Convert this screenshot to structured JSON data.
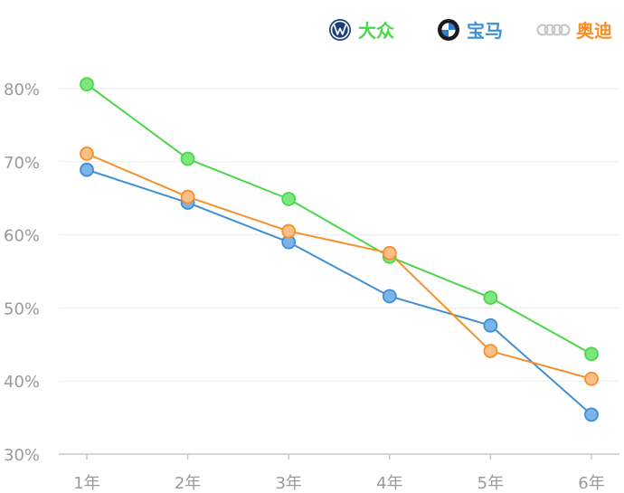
{
  "chart_data": {
    "type": "line",
    "categories": [
      "1年",
      "2年",
      "3年",
      "4年",
      "5年",
      "6年"
    ],
    "y_ticks": [
      "30%",
      "40%",
      "50%",
      "60%",
      "70%",
      "80%"
    ],
    "ylim": [
      30,
      80
    ],
    "grid": true,
    "legend_position": "top-right",
    "series": [
      {
        "name": "大众",
        "color": "#4cd64c",
        "marker_fill": "#7ee67e",
        "icon": "volkswagen-logo-icon",
        "values": [
          80.6,
          70.4,
          64.9,
          57.0,
          51.4,
          43.7
        ]
      },
      {
        "name": "宝马",
        "color": "#3f8fd2",
        "marker_fill": "#7ab4e8",
        "icon": "bmw-logo-icon",
        "values": [
          68.9,
          64.4,
          59.0,
          51.6,
          47.6,
          35.4
        ]
      },
      {
        "name": "奥迪",
        "color": "#f5902a",
        "marker_fill": "#f9bf86",
        "icon": "audi-rings-icon",
        "values": [
          71.1,
          65.2,
          60.5,
          57.5,
          44.1,
          40.3
        ]
      }
    ]
  }
}
